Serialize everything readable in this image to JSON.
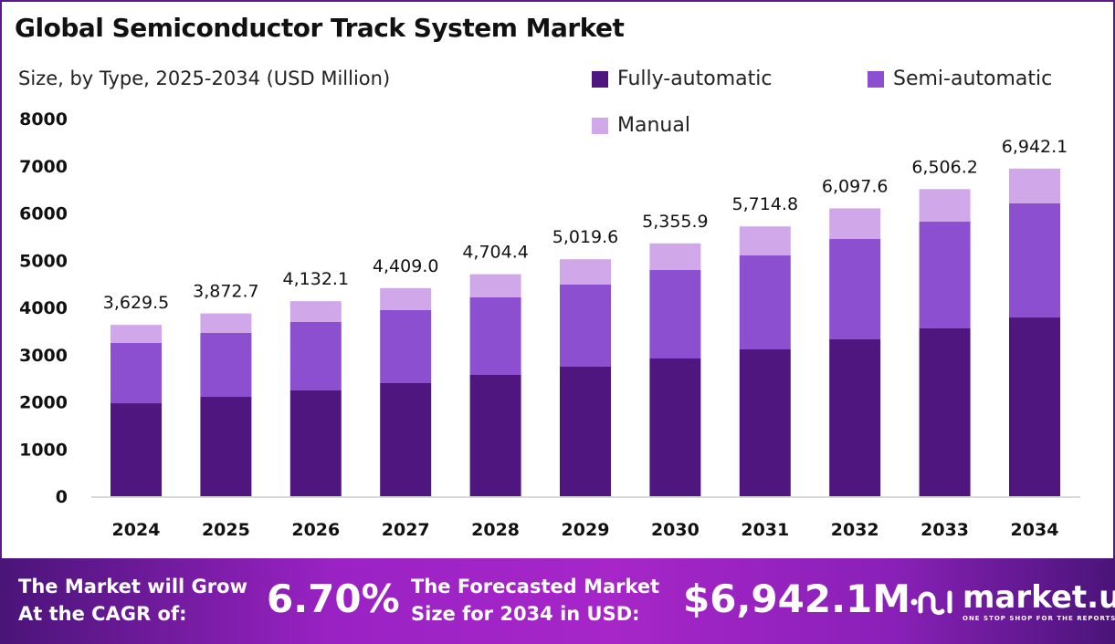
{
  "chart_data": {
    "type": "bar",
    "stacked": true,
    "title": "Global Semiconductor Track System Market",
    "subtitle": "Size, by Type, 2025-2034 (USD Million)",
    "categories": [
      "2024",
      "2025",
      "2026",
      "2027",
      "2028",
      "2029",
      "2030",
      "2031",
      "2032",
      "2033",
      "2034"
    ],
    "series": [
      {
        "name": "Fully-automatic",
        "color": "#4f1680",
        "values": [
          1970,
          2106,
          2242,
          2396,
          2570,
          2744,
          2918,
          3111,
          3324,
          3556,
          3787
        ]
      },
      {
        "name": "Semi-automatic",
        "color": "#8b4fcf",
        "values": [
          1276,
          1353,
          1449,
          1546,
          1643,
          1739,
          1874,
          1990,
          2125,
          2260,
          2416
        ]
      },
      {
        "name": "Manual",
        "color": "#d0a8ea",
        "values": [
          384,
          414,
          441,
          467,
          491,
          537,
          564,
          614,
          649,
          690,
          739
        ]
      }
    ],
    "totals": [
      "3,629.5",
      "3,872.7",
      "4,132.1",
      "4,409.0",
      "4,704.4",
      "5,019.6",
      "5,355.9",
      "5,714.8",
      "6,097.6",
      "6,506.2",
      "6,942.1"
    ],
    "yticks": [
      "0",
      "1000",
      "2000",
      "3000",
      "4000",
      "5000",
      "6000",
      "7000",
      "8000"
    ],
    "ylim": [
      0,
      8000
    ],
    "grid": false,
    "legend": "top-right"
  },
  "footer": {
    "cagr_line1": "The Market will Grow",
    "cagr_line2": "At the CAGR of:",
    "cagr_value": "6.70%",
    "forecast_line1": "The Forecasted Market",
    "forecast_line2": "Size for 2034 in USD:",
    "forecast_value": "$6,942.1M",
    "logo_name": "market.us",
    "logo_tagline": "ONE STOP SHOP FOR THE REPORTS"
  }
}
